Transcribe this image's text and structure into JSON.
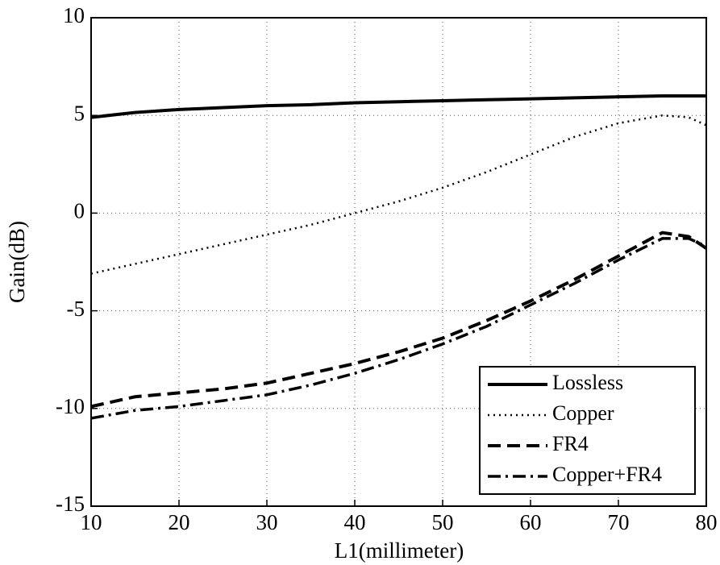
{
  "chart_data": {
    "type": "line",
    "xlabel": "L1(millimeter)",
    "ylabel": "Gain(dB)",
    "x": [
      10,
      15,
      20,
      25,
      30,
      35,
      40,
      45,
      50,
      55,
      60,
      65,
      70,
      75,
      78,
      80
    ],
    "series": [
      {
        "name": "Lossless",
        "color": "#000000",
        "style": "solid",
        "values": [
          4.9,
          5.15,
          5.3,
          5.4,
          5.5,
          5.55,
          5.65,
          5.7,
          5.75,
          5.8,
          5.85,
          5.9,
          5.95,
          6.0,
          6.0,
          6.0
        ]
      },
      {
        "name": "Copper",
        "color": "#000000",
        "style": "dotted",
        "values": [
          -3.1,
          -2.6,
          -2.1,
          -1.6,
          -1.1,
          -0.6,
          0.0,
          0.6,
          1.3,
          2.1,
          3.0,
          3.9,
          4.6,
          5.0,
          4.9,
          4.5
        ]
      },
      {
        "name": "FR4",
        "color": "#000000",
        "style": "dashed",
        "values": [
          -9.9,
          -9.4,
          -9.2,
          -9.0,
          -8.7,
          -8.2,
          -7.7,
          -7.1,
          -6.4,
          -5.5,
          -4.5,
          -3.4,
          -2.2,
          -1.0,
          -1.2,
          -1.8
        ]
      },
      {
        "name": "Copper+FR4",
        "color": "#000000",
        "style": "dashdot",
        "values": [
          -10.5,
          -10.1,
          -9.9,
          -9.6,
          -9.3,
          -8.8,
          -8.2,
          -7.5,
          -6.7,
          -5.8,
          -4.7,
          -3.6,
          -2.4,
          -1.3,
          -1.3,
          -1.7
        ]
      }
    ],
    "xlim": [
      10,
      80
    ],
    "ylim": [
      -15,
      10
    ],
    "xticks": [
      10,
      20,
      30,
      40,
      50,
      60,
      70,
      80
    ],
    "yticks": [
      -15,
      -10,
      -5,
      0,
      5,
      10
    ],
    "grid": true,
    "legend": "lower right"
  }
}
